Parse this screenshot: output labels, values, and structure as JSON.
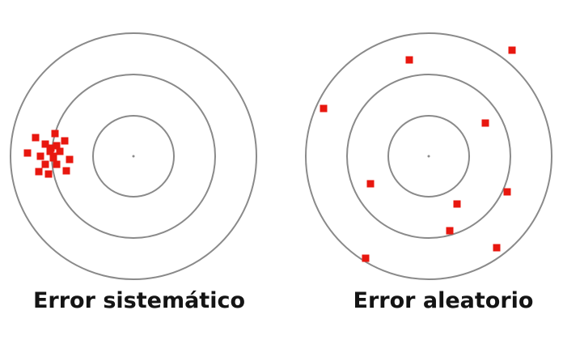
{
  "colors": {
    "background": "#ffffff",
    "ring_stroke": "#8a8a8a",
    "hit_marker": "#e8170f",
    "caption_text": "#141414"
  },
  "targets": [
    {
      "id": "systematic",
      "caption": "Error sistemático",
      "pattern": "clustered-offset"
    },
    {
      "id": "random",
      "caption": "Error aleatorio",
      "pattern": "scattered"
    }
  ]
}
